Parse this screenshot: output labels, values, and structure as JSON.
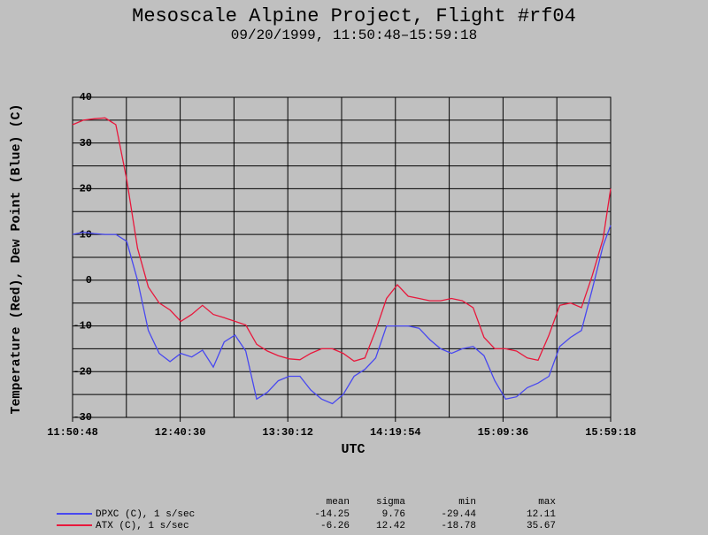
{
  "chart_data": {
    "type": "line",
    "title": "Mesoscale Alpine Project, Flight #rf04",
    "subtitle": "09/20/1999, 11:50:48–15:59:18",
    "x_label": "UTC",
    "y_label": "Temperature (Red), Dew Point (Blue) (C)",
    "xlim": [
      "11:50:48",
      "15:59:18"
    ],
    "xticks": [
      "11:50:48",
      "12:40:30",
      "13:30:12",
      "14:19:54",
      "15:09:36",
      "15:59:18"
    ],
    "xgrid": [
      "12:15:39",
      "13:05:21",
      "13:55:03",
      "14:44:45",
      "15:34:27"
    ],
    "ylim": [
      -30,
      40
    ],
    "yticks": [
      -30,
      -20,
      -10,
      0,
      10,
      20,
      30,
      40
    ],
    "ygrid": [
      -25,
      -15,
      -5,
      5,
      15,
      25,
      35
    ],
    "grid": true,
    "stat_labels": [
      "mean",
      "sigma",
      "min",
      "max"
    ],
    "x": [
      "11:50:48",
      "11:55:48",
      "12:00:48",
      "12:05:48",
      "12:10:48",
      "12:15:48",
      "12:20:48",
      "12:25:48",
      "12:30:48",
      "12:35:48",
      "12:40:48",
      "12:45:48",
      "12:50:48",
      "12:55:48",
      "13:00:48",
      "13:05:48",
      "13:10:48",
      "13:15:48",
      "13:20:48",
      "13:25:48",
      "13:30:48",
      "13:35:48",
      "13:40:48",
      "13:45:48",
      "13:50:48",
      "13:55:48",
      "14:00:48",
      "14:05:48",
      "14:10:48",
      "14:15:48",
      "14:20:48",
      "14:25:48",
      "14:30:48",
      "14:35:48",
      "14:40:48",
      "14:45:48",
      "14:50:48",
      "14:55:48",
      "15:00:48",
      "15:05:48",
      "15:10:48",
      "15:15:48",
      "15:20:48",
      "15:25:48",
      "15:30:48",
      "15:35:48",
      "15:40:48",
      "15:45:48",
      "15:50:48",
      "15:55:48",
      "15:59:18"
    ],
    "series": [
      {
        "name": "DPXC (C), 1 s/sec",
        "color": "#4848f0",
        "stats": [
          -14.25,
          9.76,
          -29.44,
          12.11
        ],
        "values": [
          10,
          10.5,
          10.2,
          10,
          10,
          8.5,
          0,
          -11,
          -16,
          -17.8,
          -16,
          -16.8,
          -15.3,
          -19,
          -13.5,
          -12,
          -15.5,
          -26,
          -24.5,
          -22,
          -21,
          -21,
          -24,
          -26,
          -27,
          -25,
          -21,
          -19.5,
          -17,
          -10,
          -10,
          -10,
          -10.5,
          -13,
          -15,
          -16,
          -15,
          -14.5,
          -16.5,
          -22,
          -26,
          -25.5,
          -23.5,
          -22.5,
          -21,
          -14.5,
          -12.5,
          -11,
          -2,
          7.5,
          12
        ]
      },
      {
        "name": "ATX (C), 1 s/sec",
        "color": "#e8183c",
        "stats": [
          -6.26,
          12.42,
          -18.78,
          35.67
        ],
        "values": [
          34,
          35,
          35.3,
          35.5,
          34,
          22,
          7,
          -1.5,
          -5,
          -6.5,
          -9,
          -7.5,
          -5.5,
          -7.5,
          -8.2,
          -9,
          -9.8,
          -14,
          -15.5,
          -16.5,
          -17.2,
          -17.4,
          -16,
          -15,
          -15,
          -16,
          -17.7,
          -17,
          -11,
          -4,
          -1,
          -3.5,
          -4,
          -4.5,
          -4.5,
          -4,
          -4.5,
          -6,
          -12.5,
          -15,
          -15,
          -15.5,
          -17,
          -17.5,
          -12,
          -5.5,
          -5,
          -6,
          1,
          9,
          20
        ]
      }
    ]
  }
}
